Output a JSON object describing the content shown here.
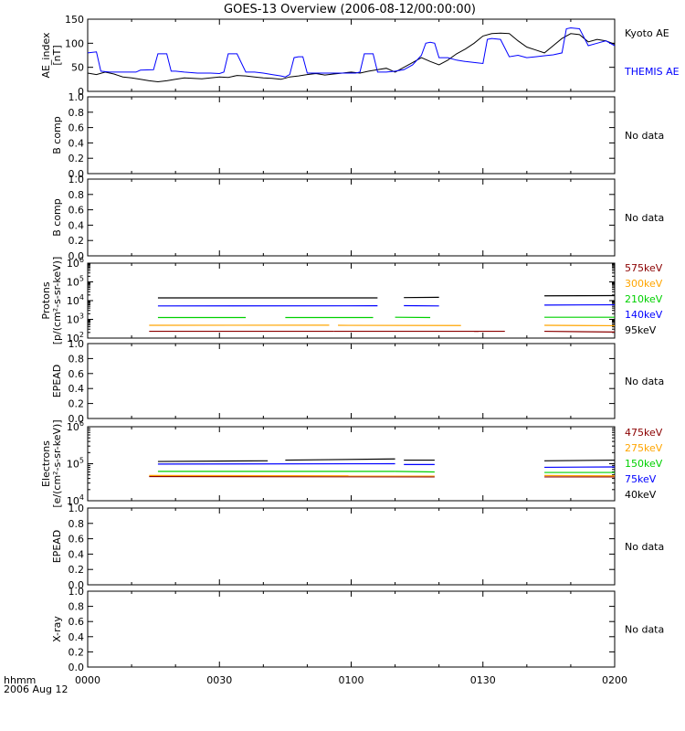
{
  "title": "GOES-13 Overview (2006-08-12/00:00:00)",
  "time_axis": {
    "ticks": [
      "0000",
      "0030",
      "0100",
      "0130",
      "0200"
    ],
    "row_label": "hhmm",
    "date_label": "2006 Aug 12"
  },
  "colors": {
    "axis": "#000000",
    "kyoto": "#000000",
    "themis": "#0000ff",
    "e575": "#8b0000",
    "e300": "#ffa500",
    "e210": "#00d000",
    "e140": "#0000ff",
    "e95": "#000000"
  },
  "chart_data": [
    {
      "type": "line",
      "ylabel": [
        "AE_index",
        "[nT]"
      ],
      "y_ticks": [
        "0",
        "50",
        "100",
        "150"
      ],
      "ylim": [
        0,
        150
      ],
      "xlim_minutes": [
        0,
        120
      ],
      "series": [
        {
          "name": "Kyoto AE",
          "color": "#000000",
          "x": [
            0,
            2,
            4,
            6,
            8,
            10,
            12,
            14,
            16,
            18,
            20,
            22,
            24,
            26,
            28,
            30,
            32,
            34,
            36,
            38,
            40,
            42,
            44,
            46,
            48,
            50,
            52,
            54,
            56,
            58,
            60,
            62,
            64,
            66,
            68,
            70,
            72,
            74,
            76,
            78,
            80,
            82,
            84,
            86,
            88,
            90,
            92,
            94,
            96,
            98,
            100,
            102,
            104,
            106,
            108,
            110,
            112,
            114,
            116,
            118,
            120
          ],
          "y": [
            38,
            35,
            40,
            36,
            30,
            28,
            25,
            22,
            20,
            22,
            25,
            28,
            27,
            26,
            28,
            30,
            29,
            33,
            32,
            30,
            28,
            27,
            25,
            30,
            32,
            35,
            37,
            34,
            36,
            38,
            40,
            38,
            42,
            45,
            48,
            40,
            50,
            60,
            70,
            62,
            55,
            65,
            78,
            88,
            100,
            115,
            120,
            121,
            120,
            105,
            92,
            86,
            80,
            95,
            110,
            120,
            118,
            103,
            108,
            105,
            98
          ]
        },
        {
          "name": "THEMIS AE",
          "color": "#0000ff",
          "x": [
            0,
            2,
            3,
            5,
            8,
            11,
            12,
            15,
            16,
            17,
            18,
            19,
            20,
            22,
            25,
            28,
            30,
            31,
            32,
            33,
            34,
            36,
            38,
            40,
            42,
            44,
            45,
            46,
            47,
            48,
            49,
            50,
            52,
            55,
            58,
            60,
            61,
            62,
            63,
            64,
            65,
            66,
            68,
            70,
            72,
            74,
            76,
            77,
            78,
            79,
            80,
            82,
            84,
            86,
            88,
            90,
            91,
            92,
            94,
            96,
            98,
            100,
            102,
            104,
            106,
            108,
            109,
            110,
            112,
            114,
            116,
            118,
            120
          ],
          "y": [
            80,
            82,
            42,
            40,
            40,
            40,
            44,
            45,
            78,
            78,
            78,
            42,
            42,
            40,
            38,
            38,
            37,
            40,
            78,
            78,
            78,
            40,
            40,
            38,
            35,
            32,
            30,
            35,
            70,
            72,
            72,
            38,
            38,
            38,
            38,
            38,
            38,
            40,
            78,
            78,
            78,
            40,
            40,
            42,
            45,
            55,
            75,
            100,
            102,
            100,
            70,
            70,
            65,
            62,
            60,
            58,
            108,
            110,
            108,
            72,
            75,
            70,
            72,
            74,
            76,
            80,
            130,
            132,
            130,
            95,
            100,
            105,
            95
          ]
        }
      ]
    },
    {
      "type": "line",
      "ylabel": [
        "B comp"
      ],
      "y_ticks": [
        "0.0",
        "0.2",
        "0.4",
        "0.6",
        "0.8",
        "1.0"
      ],
      "ylim": [
        0,
        1
      ],
      "series": [],
      "annotation": "No data"
    },
    {
      "type": "line",
      "ylabel": [
        "B comp"
      ],
      "y_ticks": [
        "0.0",
        "0.2",
        "0.4",
        "0.6",
        "0.8",
        "1.0"
      ],
      "ylim": [
        0,
        1
      ],
      "series": [],
      "annotation": "No data"
    },
    {
      "type": "line",
      "ylabel": [
        "Protons",
        "[p/(cm²-s-sr-keV)]"
      ],
      "y_scale": "log",
      "ylim": [
        100,
        1000000
      ],
      "y_ticks": [
        {
          "base": "10",
          "exp": "2",
          "value": 100
        },
        {
          "base": "10",
          "exp": "3",
          "value": 1000
        },
        {
          "base": "10",
          "exp": "4",
          "value": 10000
        },
        {
          "base": "10",
          "exp": "5",
          "value": 100000
        },
        {
          "base": "10",
          "exp": "6",
          "value": 1000000
        }
      ],
      "series": [
        {
          "name": "575keV",
          "color": "#8b0000",
          "segments": [
            [
              [
                14,
                230
              ],
              [
                56,
                230
              ]
            ],
            [
              [
                56,
                230
              ],
              [
                95,
                230
              ]
            ],
            [
              [
                88,
                230
              ],
              [
                89,
                230
              ]
            ],
            [
              [
                104,
                230
              ],
              [
                120,
                210
              ]
            ]
          ]
        },
        {
          "name": "300keV",
          "color": "#ffa500",
          "segments": [
            [
              [
                14,
                480
              ],
              [
                55,
                490
              ]
            ],
            [
              [
                57,
                480
              ],
              [
                85,
                470
              ]
            ],
            [
              [
                104,
                480
              ],
              [
                120,
                460
              ]
            ]
          ]
        },
        {
          "name": "210keV",
          "color": "#00d000",
          "segments": [
            [
              [
                16,
                1250
              ],
              [
                36,
                1250
              ]
            ],
            [
              [
                45,
                1250
              ],
              [
                65,
                1250
              ]
            ],
            [
              [
                70,
                1300
              ],
              [
                78,
                1250
              ]
            ],
            [
              [
                104,
                1300
              ],
              [
                120,
                1300
              ]
            ]
          ]
        },
        {
          "name": "140keV",
          "color": "#0000ff",
          "segments": [
            [
              [
                16,
                5200
              ],
              [
                66,
                5300
              ]
            ],
            [
              [
                72,
                5400
              ],
              [
                80,
                5200
              ]
            ],
            [
              [
                104,
                5800
              ],
              [
                120,
                6000
              ]
            ]
          ]
        },
        {
          "name": "95keV",
          "color": "#000000",
          "segments": [
            [
              [
                16,
                14000
              ],
              [
                66,
                14000
              ]
            ],
            [
              [
                72,
                14500
              ],
              [
                80,
                15000
              ]
            ],
            [
              [
                104,
                18000
              ],
              [
                120,
                18500
              ]
            ]
          ]
        }
      ]
    },
    {
      "type": "line",
      "ylabel": [
        "EPEAD"
      ],
      "y_ticks": [
        "0.0",
        "0.2",
        "0.4",
        "0.6",
        "0.8",
        "1.0"
      ],
      "ylim": [
        0,
        1
      ],
      "series": [],
      "annotation": "No data"
    },
    {
      "type": "line",
      "ylabel": [
        "Electrons",
        "[e/(cm²-s-sr-keV)]"
      ],
      "y_scale": "log",
      "ylim": [
        10000,
        1000000
      ],
      "y_ticks": [
        {
          "base": "10",
          "exp": "4",
          "value": 10000
        },
        {
          "base": "10",
          "exp": "5",
          "value": 100000
        },
        {
          "base": "10",
          "exp": "6",
          "value": 1000000
        }
      ],
      "series": [
        {
          "name": "475keV",
          "color": "#8b0000",
          "segments": [
            [
              [
                14,
                45000
              ],
              [
                79,
                44000
              ]
            ],
            [
              [
                104,
                44000
              ],
              [
                120,
                44000
              ]
            ]
          ]
        },
        {
          "name": "275keV",
          "color": "#ffa500",
          "segments": [
            [
              [
                14,
                48000
              ],
              [
                79,
                47000
              ]
            ],
            [
              [
                104,
                48000
              ],
              [
                120,
                47000
              ]
            ]
          ]
        },
        {
          "name": "150keV",
          "color": "#00d000",
          "segments": [
            [
              [
                16,
                62000
              ],
              [
                70,
                62000
              ]
            ],
            [
              [
                70,
                62000
              ],
              [
                79,
                60000
              ]
            ],
            [
              [
                104,
                58000
              ],
              [
                120,
                58000
              ]
            ]
          ]
        },
        {
          "name": "75keV",
          "color": "#0000ff",
          "segments": [
            [
              [
                16,
                98000
              ],
              [
                70,
                100000
              ]
            ],
            [
              [
                72,
                95000
              ],
              [
                79,
                95000
              ]
            ],
            [
              [
                104,
                80000
              ],
              [
                120,
                82000
              ]
            ]
          ]
        },
        {
          "name": "40keV",
          "color": "#000000",
          "segments": [
            [
              [
                16,
                115000
              ],
              [
                41,
                120000
              ]
            ],
            [
              [
                45,
                125000
              ],
              [
                70,
                135000
              ]
            ],
            [
              [
                72,
                125000
              ],
              [
                79,
                125000
              ]
            ],
            [
              [
                104,
                120000
              ],
              [
                120,
                125000
              ]
            ]
          ]
        }
      ]
    },
    {
      "type": "line",
      "ylabel": [
        "EPEAD"
      ],
      "y_ticks": [
        "0.0",
        "0.2",
        "0.4",
        "0.6",
        "0.8",
        "1.0"
      ],
      "ylim": [
        0,
        1
      ],
      "series": [],
      "annotation": "No data"
    },
    {
      "type": "line",
      "ylabel": [
        "X-ray"
      ],
      "y_ticks": [
        "0.0",
        "0.2",
        "0.4",
        "0.6",
        "0.8",
        "1.0"
      ],
      "ylim": [
        0,
        1
      ],
      "series": [],
      "annotation": "No data"
    }
  ]
}
